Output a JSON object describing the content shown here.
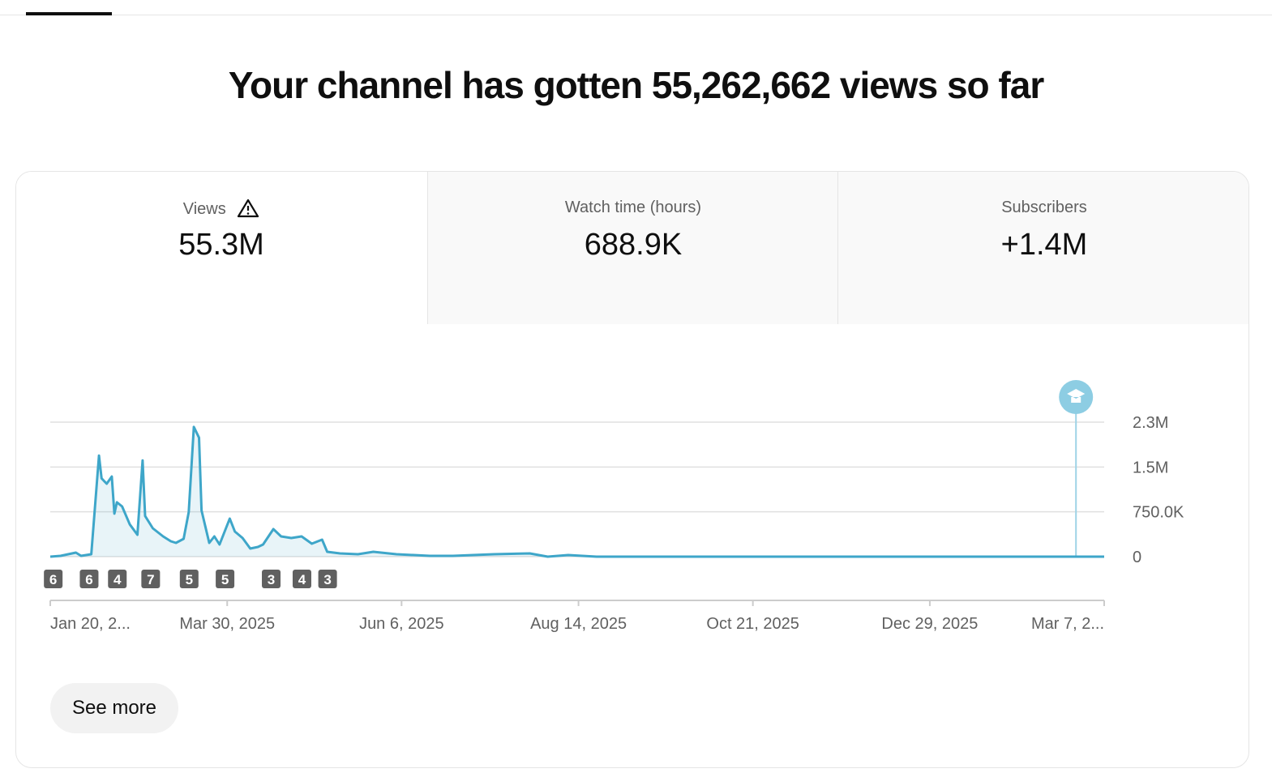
{
  "header": {
    "title": "Your channel has gotten 55,262,662 views so far"
  },
  "metrics": [
    {
      "label": "Views",
      "value": "55.3M"
    },
    {
      "label": "Watch time (hours)",
      "value": "688.9K"
    },
    {
      "label": "Subscribers",
      "value": "+1.4M"
    }
  ],
  "chart_data": {
    "type": "line",
    "color": "#3ea6c9",
    "grid": true,
    "x": [
      "2025-01-20",
      "2025-01-24",
      "2025-01-30",
      "2025-02-01",
      "2025-02-05",
      "2025-02-08",
      "2025-02-09",
      "2025-02-11",
      "2025-02-13",
      "2025-02-14",
      "2025-02-15",
      "2025-02-17",
      "2025-02-20",
      "2025-02-23",
      "2025-02-25",
      "2025-02-26",
      "2025-03-01",
      "2025-03-05",
      "2025-03-08",
      "2025-03-10",
      "2025-03-13",
      "2025-03-15",
      "2025-03-17",
      "2025-03-19",
      "2025-03-20",
      "2025-03-23",
      "2025-03-25",
      "2025-03-27",
      "2025-03-31",
      "2025-04-02",
      "2025-04-05",
      "2025-04-08",
      "2025-04-11",
      "2025-04-13",
      "2025-04-17",
      "2025-04-20",
      "2025-04-24",
      "2025-04-28",
      "2025-05-02",
      "2025-05-06",
      "2025-05-08",
      "2025-05-13",
      "2025-05-20",
      "2025-05-26",
      "2025-06-04",
      "2025-06-17",
      "2025-06-26",
      "2025-07-12",
      "2025-07-26",
      "2025-08-02",
      "2025-08-10",
      "2025-08-21",
      "2025-10-01",
      "2026-03-07"
    ],
    "values": [
      0,
      14000,
      68000,
      14000,
      40000,
      1690000,
      1310000,
      1220000,
      1340000,
      720000,
      910000,
      840000,
      540000,
      366000,
      1610000,
      680000,
      474000,
      339000,
      258000,
      230000,
      298000,
      745000,
      2170000,
      1990000,
      773000,
      230000,
      339000,
      203000,
      637000,
      420000,
      312000,
      136000,
      163000,
      203000,
      461000,
      339000,
      312000,
      339000,
      217000,
      285000,
      81000,
      54000,
      40000,
      81000,
      40000,
      14000,
      14000,
      40000,
      54000,
      0,
      27000,
      0,
      0,
      0
    ],
    "xlim": [
      "2025-01-20",
      "2026-03-07"
    ],
    "xticks": [
      {
        "value": "2025-01-20",
        "label": "Jan 20, 2..."
      },
      {
        "value": "2025-03-30",
        "label": "Mar 30, 2025"
      },
      {
        "value": "2025-06-06",
        "label": "Jun 6, 2025"
      },
      {
        "value": "2025-08-14",
        "label": "Aug 14, 2025"
      },
      {
        "value": "2025-10-21",
        "label": "Oct 21, 2025"
      },
      {
        "value": "2025-12-29",
        "label": "Dec 29, 2025"
      },
      {
        "value": "2026-03-07",
        "label": "Mar 7, 2..."
      }
    ],
    "ylim": [
      0,
      2250000
    ],
    "yticks": [
      0,
      {
        "value": 750000,
        "label": "750.0K"
      },
      {
        "value": 1500000,
        "label": "1.5M"
      },
      {
        "value": 2250000,
        "label": "2.3M"
      }
    ],
    "annotations": [
      {
        "x": "2025-01-21",
        "value": 6
      },
      {
        "x": "2025-02-04",
        "value": 6
      },
      {
        "x": "2025-02-15",
        "value": 4
      },
      {
        "x": "2025-02-28",
        "value": 7
      },
      {
        "x": "2025-03-15",
        "value": 5
      },
      {
        "x": "2025-03-29",
        "value": 5
      },
      {
        "x": "2025-04-16",
        "value": 3
      },
      {
        "x": "2025-04-28",
        "value": 4
      },
      {
        "x": "2025-05-08",
        "value": 3
      }
    ],
    "marker_date": "2026-02-24"
  },
  "button": "See more"
}
